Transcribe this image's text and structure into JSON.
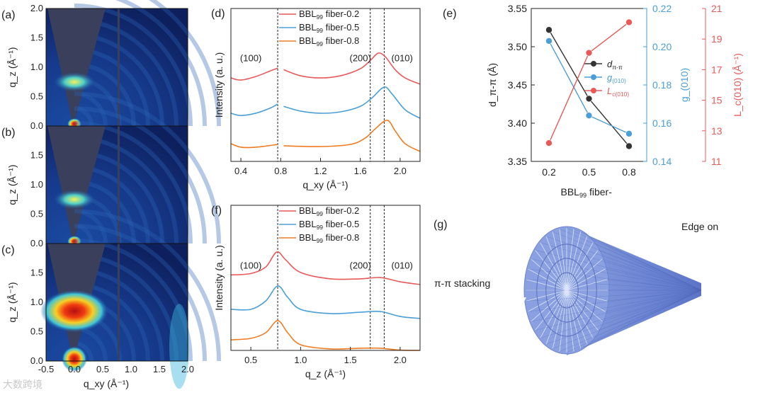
{
  "panels_abc": {
    "labels": [
      "(a)",
      "(b)",
      "(c)"
    ],
    "ylabel": "q_z (Å⁻¹)",
    "xlabel": "q_xy (Å⁻¹)",
    "xticks": [
      "-0.5",
      "0.0",
      "0.5",
      "1.0",
      "1.5",
      "2.0"
    ],
    "yticks": [
      "0.0",
      "0.5",
      "1.0",
      "1.5",
      "2.0"
    ]
  },
  "watermark": "大数跨境",
  "colors": {
    "red": "#e8595a",
    "blue": "#4a9fd8",
    "orange": "#f07c22",
    "black": "#333333"
  },
  "chart_data": [
    {
      "id": "d",
      "panel_label": "(d)",
      "type": "line",
      "xlabel": "q_xy (Å⁻¹)",
      "ylabel": "Intensity (a. u.)",
      "xlim": [
        0.3,
        2.2
      ],
      "ylim": [
        0,
        10
      ],
      "xticks": [
        "0.4",
        "0.8",
        "1.2",
        "1.6",
        "2.0"
      ],
      "xtick_values": [
        0.4,
        0.8,
        1.2,
        1.6,
        2.0
      ],
      "vlines": [
        0.77,
        1.7,
        1.84
      ],
      "annotations": [
        "(100)",
        "(200)",
        "(010)"
      ],
      "gap": [
        0.77,
        0.83
      ],
      "series": [
        {
          "name": "BBL99 fiber-0.2",
          "legend_main": "BBL",
          "legend_sub": "99",
          "legend_tail": " fiber-0.2",
          "color": "#e8595a",
          "points": [
            [
              0.3,
              5.46
            ],
            [
              0.4,
              5.32
            ],
            [
              0.55,
              5.55
            ],
            [
              0.7,
              5.93
            ],
            [
              0.77,
              6.1
            ],
            [
              0.83,
              6.0
            ],
            [
              1.0,
              5.6
            ],
            [
              1.2,
              5.46
            ],
            [
              1.4,
              5.6
            ],
            [
              1.6,
              6.06
            ],
            [
              1.7,
              6.6
            ],
            [
              1.78,
              7.08
            ],
            [
              1.85,
              6.85
            ],
            [
              1.95,
              6.0
            ],
            [
              2.05,
              5.46
            ],
            [
              2.2,
              5.05
            ]
          ]
        },
        {
          "name": "BBL99 fiber-0.5",
          "legend_main": "BBL",
          "legend_sub": "99",
          "legend_tail": " fiber-0.5",
          "color": "#4a9fd8",
          "points": [
            [
              0.3,
              3.15
            ],
            [
              0.4,
              3.0
            ],
            [
              0.55,
              3.15
            ],
            [
              0.7,
              3.5
            ],
            [
              0.77,
              3.75
            ],
            [
              0.83,
              3.6
            ],
            [
              1.0,
              3.29
            ],
            [
              1.2,
              3.15
            ],
            [
              1.4,
              3.24
            ],
            [
              1.6,
              3.6
            ],
            [
              1.72,
              4.17
            ],
            [
              1.84,
              4.86
            ],
            [
              1.92,
              4.4
            ],
            [
              2.05,
              3.38
            ],
            [
              2.2,
              2.82
            ]
          ]
        },
        {
          "name": "BBL99 fiber-0.8",
          "legend_main": "BBL",
          "legend_sub": "99",
          "legend_tail": " fiber-0.8",
          "color": "#f07c22",
          "points": [
            [
              0.3,
              1.16
            ],
            [
              0.4,
              0.93
            ],
            [
              0.55,
              0.93
            ],
            [
              0.77,
              1.11
            ],
            [
              0.83,
              1.02
            ],
            [
              1.2,
              0.97
            ],
            [
              1.5,
              1.11
            ],
            [
              1.65,
              1.53
            ],
            [
              1.75,
              2.13
            ],
            [
              1.87,
              2.69
            ],
            [
              1.95,
              2.0
            ],
            [
              2.05,
              1.16
            ],
            [
              2.2,
              0.65
            ]
          ]
        }
      ]
    },
    {
      "id": "e",
      "panel_label": "(e)",
      "type": "line",
      "xlabel": "BBL99 fiber-",
      "x": [
        "0.2",
        "0.5",
        "0.8"
      ],
      "axes": [
        {
          "label": "d_π-π (Å)",
          "ylim": [
            3.35,
            3.55
          ],
          "ticks": [
            "3.35",
            "3.40",
            "3.45",
            "3.50",
            "3.55"
          ]
        },
        {
          "label": "g_(010)",
          "ylim": [
            0.14,
            0.22
          ],
          "ticks": [
            "0.14",
            "0.16",
            "0.18",
            "0.20",
            "0.22"
          ]
        },
        {
          "label": "L_c(010) (Å⁻¹)",
          "ylim": [
            11,
            21
          ],
          "ticks": [
            "11",
            "13",
            "15",
            "17",
            "19",
            "21"
          ]
        }
      ],
      "series": [
        {
          "name": "d_π-π",
          "legend_main": "d",
          "legend_sub": "π-π",
          "axis": 0,
          "color": "#333333",
          "values": [
            3.522,
            3.432,
            3.37
          ]
        },
        {
          "name": "g_(010)",
          "legend_main": "g",
          "legend_sub": "(010)",
          "axis": 1,
          "color": "#4a9fd8",
          "values": [
            0.203,
            0.164,
            0.1545
          ]
        },
        {
          "name": "L_c(010)",
          "legend_main": "L",
          "legend_sub": "c(010)",
          "axis": 2,
          "color": "#e8595a",
          "values": [
            12.2,
            18.1,
            20.1
          ]
        }
      ]
    },
    {
      "id": "f",
      "panel_label": "(f)",
      "type": "line",
      "xlabel": "q_z (Å⁻¹)",
      "ylabel": "Intensity (a. u.)",
      "xlim": [
        0.3,
        2.2
      ],
      "ylim": [
        0,
        10
      ],
      "xticks": [
        "0.5",
        "1.0",
        "1.5",
        "2.0"
      ],
      "xtick_values": [
        0.5,
        1.0,
        1.5,
        2.0
      ],
      "vlines": [
        0.77,
        1.7,
        1.84
      ],
      "annotations": [
        "(100)",
        "(200)",
        "(010)"
      ],
      "series": [
        {
          "name": "BBL99 fiber-0.2",
          "legend_main": "BBL",
          "legend_sub": "99",
          "legend_tail": " fiber-0.2",
          "color": "#e8595a",
          "points": [
            [
              0.3,
              5.2
            ],
            [
              0.5,
              5.3
            ],
            [
              0.65,
              5.75
            ],
            [
              0.76,
              6.78
            ],
            [
              0.85,
              6.24
            ],
            [
              1.0,
              5.37
            ],
            [
              1.3,
              4.93
            ],
            [
              1.6,
              4.93
            ],
            [
              1.8,
              5.02
            ],
            [
              2.0,
              4.73
            ],
            [
              2.2,
              4.54
            ]
          ]
        },
        {
          "name": "BBL99 fiber-0.5",
          "legend_main": "BBL",
          "legend_sub": "99",
          "legend_tail": " fiber-0.5",
          "color": "#4a9fd8",
          "points": [
            [
              0.3,
              2.83
            ],
            [
              0.5,
              2.83
            ],
            [
              0.65,
              3.41
            ],
            [
              0.77,
              4.44
            ],
            [
              0.87,
              3.66
            ],
            [
              1.0,
              2.83
            ],
            [
              1.3,
              2.54
            ],
            [
              1.6,
              2.63
            ],
            [
              1.8,
              2.68
            ],
            [
              2.0,
              2.34
            ],
            [
              2.2,
              2.2
            ]
          ]
        },
        {
          "name": "BBL99 fiber-0.8",
          "legend_main": "BBL",
          "legend_sub": "99",
          "legend_tail": " fiber-0.8",
          "color": "#f07c22",
          "points": [
            [
              0.3,
              0.73
            ],
            [
              0.5,
              0.83
            ],
            [
              0.65,
              1.22
            ],
            [
              0.77,
              2.05
            ],
            [
              0.87,
              1.22
            ],
            [
              1.0,
              0.39
            ],
            [
              1.3,
              0.1
            ],
            [
              1.6,
              0.15
            ],
            [
              1.8,
              0.15
            ],
            [
              2.0,
              0.02
            ],
            [
              2.2,
              0.0
            ]
          ]
        }
      ]
    }
  ],
  "panel_g": {
    "label": "(g)",
    "edge_on": "Edge on",
    "stacking": "π-π stacking"
  }
}
